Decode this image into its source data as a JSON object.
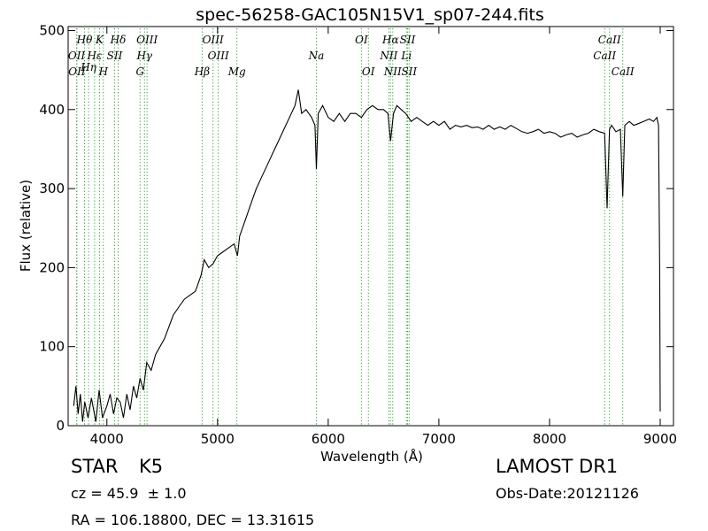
{
  "figure": {
    "object_class": "STAR",
    "subclass": "K5",
    "survey": "LAMOST DR1",
    "redshift_line": "cz = 45.9  ± 1.0",
    "obs_date_line": "Obs-Date:20121126",
    "coords_line": "RA = 106.18800, DEC = 13.31615"
  },
  "chart_data": {
    "type": "line",
    "title": "spec-56258-GAC105N15V1_sp07-244.fits",
    "xlabel": "Wavelength (Å)",
    "ylabel": "Flux (relative)",
    "xlim": [
      3650,
      9120
    ],
    "ylim": [
      0,
      505
    ],
    "xticks": [
      4000,
      5000,
      6000,
      7000,
      8000,
      9000
    ],
    "yticks": [
      0,
      100,
      200,
      300,
      400,
      500
    ],
    "grid": false,
    "legend": "none",
    "colors": {
      "spectrum": "#000000",
      "line_markers": "#2ca02c",
      "axes": "#000000"
    },
    "series": [
      {
        "x": [
          3700,
          3720,
          3740,
          3760,
          3780,
          3800,
          3830,
          3860,
          3900,
          3930,
          3960,
          4000,
          4030,
          4060,
          4090,
          4120,
          4150,
          4180,
          4210,
          4240,
          4270,
          4300,
          4330,
          4360,
          4400,
          4440,
          4480,
          4520,
          4560,
          4600,
          4650,
          4700,
          4750,
          4800,
          4850,
          4880,
          4920,
          4960,
          5000,
          5050,
          5100,
          5150,
          5180,
          5200,
          5250,
          5300,
          5350,
          5400,
          5450,
          5500,
          5550,
          5600,
          5650,
          5700,
          5730,
          5760,
          5800,
          5850,
          5880,
          5893,
          5910,
          5950,
          6000,
          6050,
          6100,
          6150,
          6200,
          6250,
          6300,
          6350,
          6400,
          6450,
          6500,
          6540,
          6563,
          6590,
          6620,
          6660,
          6700,
          6750,
          6800,
          6850,
          6900,
          6950,
          7000,
          7050,
          7100,
          7150,
          7200,
          7250,
          7300,
          7350,
          7400,
          7450,
          7500,
          7550,
          7600,
          7650,
          7700,
          7750,
          7800,
          7850,
          7900,
          7950,
          8000,
          8050,
          8100,
          8150,
          8200,
          8250,
          8300,
          8350,
          8400,
          8450,
          8498,
          8520,
          8542,
          8560,
          8600,
          8640,
          8662,
          8680,
          8720,
          8760,
          8800,
          8850,
          8900,
          8940,
          8970,
          8985,
          8995,
          9000
        ],
        "y": [
          25,
          50,
          15,
          40,
          5,
          30,
          10,
          35,
          5,
          45,
          10,
          25,
          40,
          15,
          35,
          30,
          10,
          40,
          20,
          50,
          35,
          60,
          45,
          80,
          70,
          90,
          100,
          110,
          125,
          140,
          150,
          160,
          165,
          170,
          190,
          210,
          200,
          205,
          215,
          220,
          225,
          230,
          215,
          240,
          260,
          280,
          300,
          315,
          330,
          345,
          360,
          375,
          390,
          405,
          425,
          395,
          400,
          390,
          380,
          325,
          395,
          405,
          390,
          385,
          395,
          385,
          395,
          395,
          390,
          400,
          405,
          400,
          400,
          395,
          360,
          395,
          405,
          400,
          395,
          385,
          390,
          385,
          380,
          385,
          380,
          385,
          375,
          380,
          378,
          380,
          377,
          378,
          375,
          380,
          375,
          378,
          375,
          380,
          376,
          372,
          370,
          372,
          375,
          370,
          372,
          370,
          365,
          368,
          370,
          365,
          368,
          370,
          375,
          372,
          370,
          275,
          375,
          380,
          372,
          375,
          290,
          380,
          385,
          380,
          382,
          385,
          388,
          385,
          390,
          380,
          200,
          18
        ]
      }
    ],
    "annotations": [
      {
        "label": "Hθ",
        "x": 3798,
        "row": 1
      },
      {
        "label": "K",
        "x": 3934,
        "row": 1
      },
      {
        "label": "Hδ",
        "x": 4102,
        "row": 1
      },
      {
        "label": "OIII",
        "x": 4363,
        "row": 1
      },
      {
        "label": "OIII",
        "x": 4959,
        "row": 1
      },
      {
        "label": "OI",
        "x": 6300,
        "row": 1
      },
      {
        "label": "Hα",
        "x": 6563,
        "row": 1
      },
      {
        "label": "SII",
        "x": 6717,
        "row": 1
      },
      {
        "label": "CaII",
        "x": 8542,
        "row": 1
      },
      {
        "label": "OII",
        "x": 3727,
        "row": 2
      },
      {
        "label": "Hε",
        "x": 3889,
        "row": 2
      },
      {
        "label": "SII",
        "x": 4070,
        "row": 2
      },
      {
        "label": "Hγ",
        "x": 4340,
        "row": 2
      },
      {
        "label": "OIII",
        "x": 5007,
        "row": 2
      },
      {
        "label": "NII",
        "x": 6548,
        "row": 2
      },
      {
        "label": "Li",
        "x": 6707,
        "row": 2
      },
      {
        "label": "CaII",
        "x": 8498,
        "row": 2
      },
      {
        "label": "Hη",
        "x": 3835,
        "row": 2.5
      },
      {
        "label": "OII",
        "x": 3729,
        "row": 3
      },
      {
        "label": "H",
        "x": 3968,
        "row": 3
      },
      {
        "label": "G",
        "x": 4300,
        "row": 3
      },
      {
        "label": "Hβ",
        "x": 4861,
        "row": 3
      },
      {
        "label": "Mg",
        "x": 5175,
        "row": 3
      },
      {
        "label": "Na",
        "x": 5893,
        "row": 2
      },
      {
        "label": "OI",
        "x": 6363,
        "row": 3
      },
      {
        "label": "NII",
        "x": 6583,
        "row": 3
      },
      {
        "label": "SII",
        "x": 6731,
        "row": 3
      },
      {
        "label": "CaII",
        "x": 8662,
        "row": 3
      }
    ],
    "marker_lines": [
      3727,
      3729,
      3798,
      3835,
      3889,
      3934,
      3968,
      4070,
      4102,
      4300,
      4340,
      4363,
      4861,
      4959,
      5007,
      5175,
      5893,
      6300,
      6363,
      6548,
      6563,
      6583,
      6707,
      6717,
      6731,
      8498,
      8542,
      8662
    ]
  }
}
